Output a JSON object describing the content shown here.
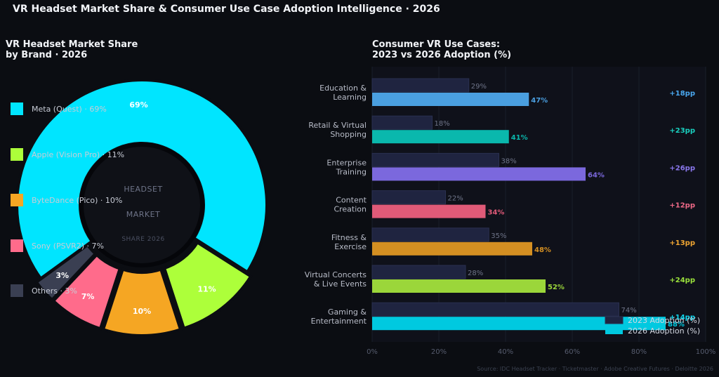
{
  "title": "VR Headset Market Share & Consumer Use Case Adoption Intelligence · 2026",
  "source": "Source: IDC Headset Tracker · Ticketmaster · Adobe Creative Futures · Deloitte 2026",
  "chart_data": [
    {
      "type": "pie",
      "title_lines": [
        "VR Headset Market Share",
        "by Brand · 2026"
      ],
      "center_lines": [
        "HEADSET",
        "MARKET",
        "SHARE 2026"
      ],
      "slices": [
        {
          "name": "Meta (Quest)",
          "value": 69,
          "label": "69%",
          "legend": "Meta (Quest)  ·  69%",
          "color": "#00e5ff"
        },
        {
          "name": "Apple (Vision Pro)",
          "value": 11,
          "label": "11%",
          "legend": "Apple (Vision Pro)  ·  11%",
          "color": "#adff3a"
        },
        {
          "name": "ByteDance (Pico)",
          "value": 10,
          "label": "10%",
          "legend": "ByteDance (Pico)  ·  10%",
          "color": "#f5a623"
        },
        {
          "name": "Sony (PSVR2)",
          "value": 7,
          "label": "7%",
          "legend": "Sony (PSVR2)  ·  7%",
          "color": "#ff6b8b"
        },
        {
          "name": "Others",
          "value": 3,
          "label": "3%",
          "legend": "Others  ·  3%",
          "color": "#3a3f52"
        }
      ],
      "legend_placement": "left"
    },
    {
      "type": "bar",
      "orientation": "horizontal",
      "title_lines": [
        "Consumer VR Use Cases:",
        "2023 vs 2026 Adoption (%)"
      ],
      "categories": [
        [
          "Education &",
          "Learning"
        ],
        [
          "Retail & Virtual",
          "Shopping"
        ],
        [
          "Enterprise",
          "Training"
        ],
        [
          "Content",
          "Creation"
        ],
        [
          "Fitness &",
          "Exercise"
        ],
        [
          "Virtual Concerts",
          "& Live Events"
        ],
        [
          "Gaming &",
          "Entertainment"
        ]
      ],
      "series": [
        {
          "name": "2023 Adoption (%)",
          "values": [
            29,
            18,
            38,
            22,
            35,
            28,
            74
          ],
          "labels": [
            "29%",
            "18%",
            "38%",
            "22%",
            "35%",
            "28%",
            "74%"
          ],
          "color": "#1f2440"
        },
        {
          "name": "2026 Adoption (%)",
          "values": [
            47,
            41,
            64,
            34,
            48,
            52,
            88
          ],
          "labels": [
            "47%",
            "41%",
            "64%",
            "34%",
            "48%",
            "52%",
            "88%"
          ],
          "colors": [
            "#4a9fe0",
            "#0ab8ad",
            "#7b68dd",
            "#e05a78",
            "#d48f22",
            "#9bd63a",
            "#00c9e0"
          ]
        }
      ],
      "deltas": [
        "+18pp",
        "+23pp",
        "+26pp",
        "+12pp",
        "+13pp",
        "+24pp",
        "+14pp"
      ],
      "delta_colors": [
        "#4aa8f0",
        "#1ad1c0",
        "#8b78ee",
        "#f06a88",
        "#f0a632",
        "#9be23c",
        "#10d7ee"
      ],
      "xlim": [
        0,
        100
      ],
      "x_ticks": [
        "0%",
        "20%",
        "40%",
        "60%",
        "80%",
        "100%"
      ],
      "legend_placement": "lower-right"
    }
  ]
}
